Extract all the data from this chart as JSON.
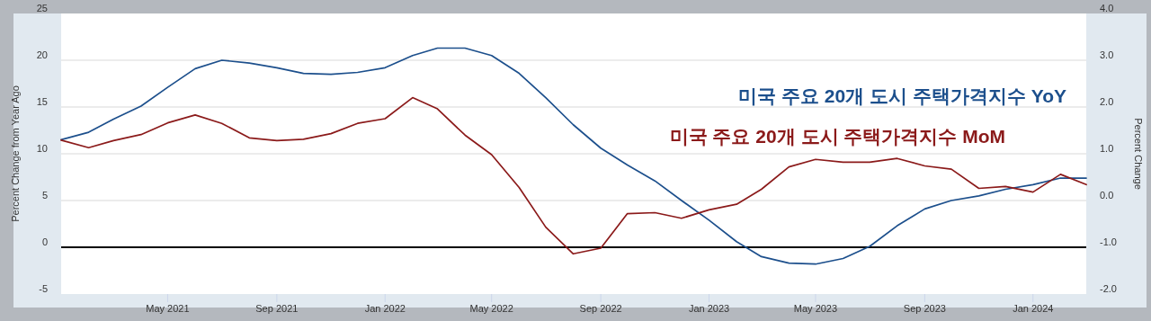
{
  "chart_data": {
    "type": "line",
    "ylabel": "Percent Change from Year Ago",
    "y2label": "Percent Change",
    "x": [
      "2021-01",
      "2021-02",
      "2021-03",
      "2021-04",
      "2021-05",
      "2021-06",
      "2021-07",
      "2021-08",
      "2021-09",
      "2021-10",
      "2021-11",
      "2021-12",
      "2022-01",
      "2022-02",
      "2022-03",
      "2022-04",
      "2022-05",
      "2022-06",
      "2022-07",
      "2022-08",
      "2022-09",
      "2022-10",
      "2022-11",
      "2022-12",
      "2023-01",
      "2023-02",
      "2023-03",
      "2023-04",
      "2023-05",
      "2023-06",
      "2023-07",
      "2023-08",
      "2023-09",
      "2023-10",
      "2023-11",
      "2023-12",
      "2024-01",
      "2024-02",
      "2024-03"
    ],
    "series": [
      {
        "name": "미국 주요 20개 도시 주택가격지수 YoY",
        "color": "#1c4f8c",
        "values": [
          11.5,
          12.3,
          13.7,
          15.1,
          17.1,
          19.1,
          20.0,
          19.7,
          19.2,
          18.6,
          18.5,
          18.7,
          19.2,
          20.5,
          21.3,
          21.3,
          20.5,
          18.6,
          16.0,
          13.1,
          10.6,
          8.8,
          7.1,
          5.0,
          2.9,
          0.6,
          -1.0,
          -1.7,
          -1.8,
          -1.2,
          0.1,
          2.3,
          4.1,
          5.0,
          5.5,
          6.2,
          6.7,
          7.4,
          7.4
        ]
      },
      {
        "name": "미국 주요 20개 도시 주택가격지수 MoM",
        "color": "#8b1a1a",
        "axis": "y2",
        "values": [
          1.29,
          1.13,
          1.28,
          1.41,
          1.66,
          1.83,
          1.65,
          1.34,
          1.28,
          1.31,
          1.43,
          1.65,
          1.75,
          2.2,
          1.96,
          1.4,
          0.98,
          0.28,
          -0.57,
          -1.14,
          -1.02,
          -0.28,
          -0.26,
          -0.38,
          -0.2,
          -0.08,
          0.24,
          0.72,
          0.88,
          0.82,
          0.82,
          0.9,
          0.74,
          0.67,
          0.26,
          0.3,
          0.18,
          0.56,
          0.34
        ]
      }
    ],
    "xlim": [
      "2021-01",
      "2024-03"
    ],
    "xticks": [
      {
        "value": "2021-05",
        "label": "May 2021"
      },
      {
        "value": "2021-09",
        "label": "Sep 2021"
      },
      {
        "value": "2022-01",
        "label": "Jan 2022"
      },
      {
        "value": "2022-05",
        "label": "May 2022"
      },
      {
        "value": "2022-09",
        "label": "Sep 2022"
      },
      {
        "value": "2023-01",
        "label": "Jan 2023"
      },
      {
        "value": "2023-05",
        "label": "May 2023"
      },
      {
        "value": "2023-09",
        "label": "Sep 2023"
      },
      {
        "value": "2024-01",
        "label": "Jan 2024"
      }
    ],
    "ylim": [
      -5,
      25
    ],
    "yticks": [
      -5,
      0,
      5,
      10,
      15,
      20,
      25
    ],
    "y2lim": [
      -2,
      4
    ],
    "y2ticks": [
      {
        "value": -2,
        "label": "-2.0"
      },
      {
        "value": -1,
        "label": "-1.0"
      },
      {
        "value": 0,
        "label": "0.0"
      },
      {
        "value": 1,
        "label": "1.0"
      },
      {
        "value": 2,
        "label": "2.0"
      },
      {
        "value": 3,
        "label": "3.0"
      },
      {
        "value": 4,
        "label": "4.0"
      }
    ],
    "ref_lines": [
      {
        "axis": "y",
        "value": 0,
        "color": "#000000"
      }
    ],
    "grid": "y",
    "legend": "top right",
    "marker": "none",
    "line_style": "solid"
  }
}
